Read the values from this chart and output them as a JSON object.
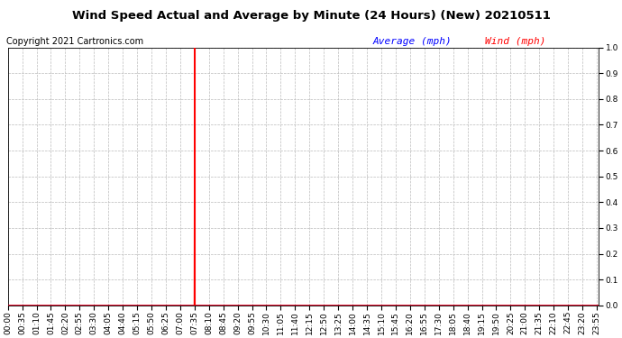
{
  "title": "Wind Speed Actual and Average by Minute (24 Hours) (New) 20210511",
  "copyright": "Copyright 2021 Cartronics.com",
  "legend_average": "Average",
  "legend_wind": "Wind",
  "legend_unit": "(mph)",
  "average_color": "#0000ff",
  "wind_color": "#ff0000",
  "ylim": [
    0.0,
    1.0
  ],
  "yticks": [
    0.0,
    0.1,
    0.2,
    0.3,
    0.4,
    0.5,
    0.6,
    0.7,
    0.8,
    0.9,
    1.0
  ],
  "spike_minute": 455,
  "total_minutes": 1440,
  "background_color": "#ffffff",
  "grid_color": "#bbbbbb",
  "x_tick_step": 35,
  "title_fontsize": 9.5,
  "copyright_fontsize": 7,
  "legend_fontsize": 8,
  "tick_fontsize": 6.5
}
